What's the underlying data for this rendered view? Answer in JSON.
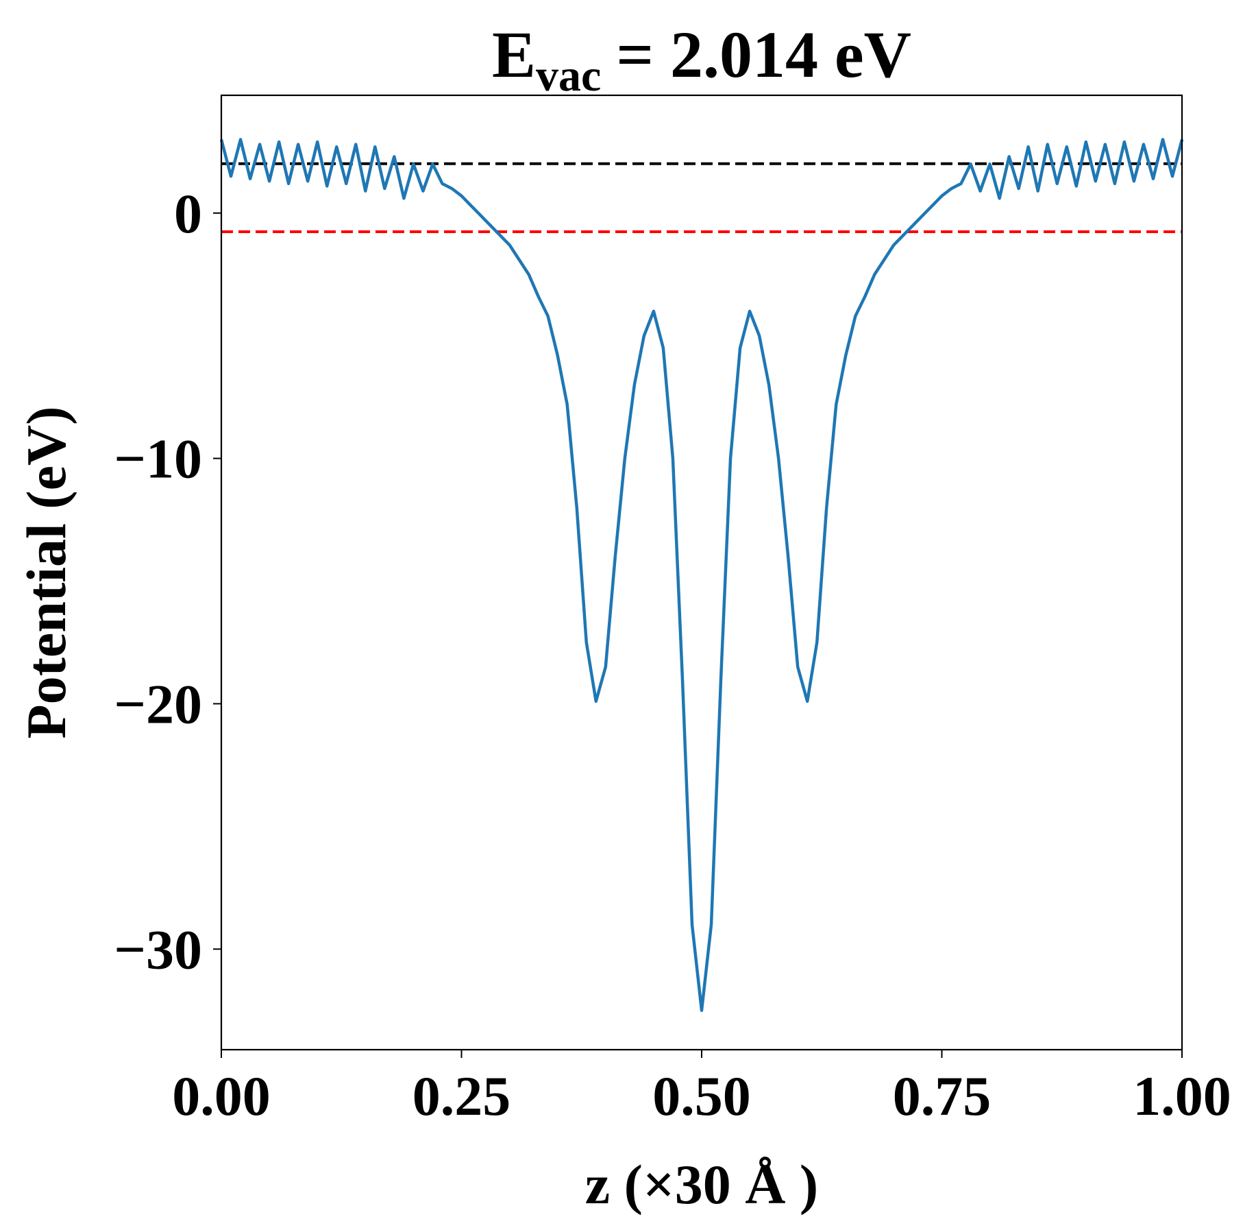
{
  "chart_data": {
    "type": "line",
    "title": {
      "symbol": "E",
      "subscript": "vac",
      "text": "= 2.014 eV"
    },
    "xlabel": "z (×30 Å )",
    "ylabel": "Potential (eV)",
    "xlim": [
      0,
      1
    ],
    "ylim": [
      -34.1,
      4.8
    ],
    "xticks": [
      {
        "value": 0,
        "label": "0.00"
      },
      {
        "value": 0.25,
        "label": "0.25"
      },
      {
        "value": 0.5,
        "label": "0.50"
      },
      {
        "value": 0.75,
        "label": "0.75"
      },
      {
        "value": 1,
        "label": "1.00"
      }
    ],
    "yticks": [
      {
        "value": -30,
        "label": "−30"
      },
      {
        "value": -20,
        "label": "−20"
      },
      {
        "value": -10,
        "label": "−10"
      },
      0
    ],
    "grid": false,
    "reference_lines": [
      {
        "value": 2.014,
        "color": "#000000"
      },
      {
        "value": -0.76,
        "color": "#ff0000"
      }
    ],
    "series": [
      {
        "color": "#1f77b4",
        "x": [
          0,
          0.01,
          0.02,
          0.03,
          0.04,
          0.05,
          0.06,
          0.07,
          0.08,
          0.09,
          0.1,
          0.11,
          0.12,
          0.13,
          0.14,
          0.15,
          0.16,
          0.17,
          0.18,
          0.19,
          0.2,
          0.21,
          0.22,
          0.23,
          0.24,
          0.25,
          0.26,
          0.27,
          0.28,
          0.29,
          0.3,
          0.31,
          0.32,
          0.33,
          0.34,
          0.35,
          0.36,
          0.37,
          0.38,
          0.39,
          0.4,
          0.41,
          0.42,
          0.43,
          0.44,
          0.45,
          0.46,
          0.47,
          0.48,
          0.49,
          0.5,
          0.51,
          0.52,
          0.53,
          0.54,
          0.55,
          0.56,
          0.57,
          0.58,
          0.59,
          0.6,
          0.61,
          0.62,
          0.63,
          0.64,
          0.65,
          0.66,
          0.67,
          0.68,
          0.69,
          0.7,
          0.71,
          0.72,
          0.73,
          0.74,
          0.75,
          0.76,
          0.77,
          0.78,
          0.79,
          0.8,
          0.81,
          0.82,
          0.83,
          0.84,
          0.85,
          0.86,
          0.87,
          0.88,
          0.89,
          0.9,
          0.91,
          0.92,
          0.93,
          0.94,
          0.95,
          0.96,
          0.97,
          0.98,
          0.99,
          1
        ],
        "values": [
          3.0,
          1.5,
          3.0,
          1.4,
          2.8,
          1.3,
          2.9,
          1.2,
          2.8,
          1.3,
          2.9,
          1.1,
          2.7,
          1.2,
          2.8,
          0.9,
          2.7,
          1.0,
          2.3,
          0.6,
          2.0,
          0.9,
          2.0,
          1.2,
          1.0,
          0.7,
          0.3,
          -0.1,
          -0.5,
          -0.9,
          -1.3,
          -1.9,
          -2.5,
          -3.4,
          -4.2,
          -5.8,
          -7.8,
          -12,
          -17.5,
          -19.9,
          -18.5,
          -14,
          -10,
          -7,
          -5.0,
          -4.0,
          -5.5,
          -10,
          -19,
          -29,
          -32.5,
          -29,
          -19,
          -10,
          -5.5,
          -4.0,
          -5.0,
          -7,
          -10,
          -14,
          -18.5,
          -19.9,
          -17.5,
          -12,
          -7.8,
          -5.8,
          -4.2,
          -3.4,
          -2.5,
          -1.9,
          -1.3,
          -0.9,
          -0.5,
          -0.1,
          0.3,
          0.7,
          1.0,
          1.2,
          2.0,
          0.9,
          2.0,
          0.6,
          2.3,
          1.0,
          2.7,
          0.9,
          2.8,
          1.2,
          2.7,
          1.1,
          2.9,
          1.3,
          2.8,
          1.2,
          2.9,
          1.3,
          2.8,
          1.4,
          3.0,
          1.5,
          3.0
        ]
      }
    ]
  }
}
